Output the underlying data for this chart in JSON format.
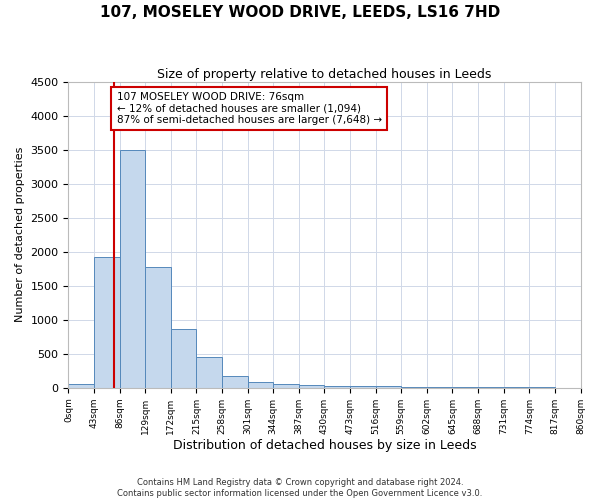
{
  "title": "107, MOSELEY WOOD DRIVE, LEEDS, LS16 7HD",
  "subtitle": "Size of property relative to detached houses in Leeds",
  "xlabel": "Distribution of detached houses by size in Leeds",
  "ylabel": "Number of detached properties",
  "bin_edges": [
    0,
    43,
    86,
    129,
    172,
    215,
    258,
    301,
    344,
    387,
    430,
    473,
    516,
    559,
    602,
    645,
    688,
    731,
    774,
    817,
    860
  ],
  "bar_heights": [
    50,
    1920,
    3500,
    1780,
    860,
    460,
    175,
    90,
    55,
    40,
    30,
    25,
    20,
    18,
    15,
    12,
    10,
    8,
    6,
    5
  ],
  "bar_color": "#c5d8ed",
  "bar_edge_color": "#5588bb",
  "property_line_x": 76,
  "property_line_color": "#cc0000",
  "annotation_text": "107 MOSELEY WOOD DRIVE: 76sqm\n← 12% of detached houses are smaller (1,094)\n87% of semi-detached houses are larger (7,648) →",
  "annotation_box_color": "#ffffff",
  "annotation_box_edge": "#cc0000",
  "ylim": [
    0,
    4500
  ],
  "yticks": [
    0,
    500,
    1000,
    1500,
    2000,
    2500,
    3000,
    3500,
    4000,
    4500
  ],
  "xtick_labels": [
    "0sqm",
    "43sqm",
    "86sqm",
    "129sqm",
    "172sqm",
    "215sqm",
    "258sqm",
    "301sqm",
    "344sqm",
    "387sqm",
    "430sqm",
    "473sqm",
    "516sqm",
    "559sqm",
    "602sqm",
    "645sqm",
    "688sqm",
    "731sqm",
    "774sqm",
    "817sqm",
    "860sqm"
  ],
  "footer_text": "Contains HM Land Registry data © Crown copyright and database right 2024.\nContains public sector information licensed under the Open Government Licence v3.0.",
  "background_color": "#ffffff",
  "grid_color": "#d0d8e8",
  "title_fontsize": 11,
  "subtitle_fontsize": 9,
  "xlabel_fontsize": 9,
  "ylabel_fontsize": 8,
  "xtick_fontsize": 6.5,
  "ytick_fontsize": 8,
  "footer_fontsize": 6,
  "annot_fontsize": 7.5
}
